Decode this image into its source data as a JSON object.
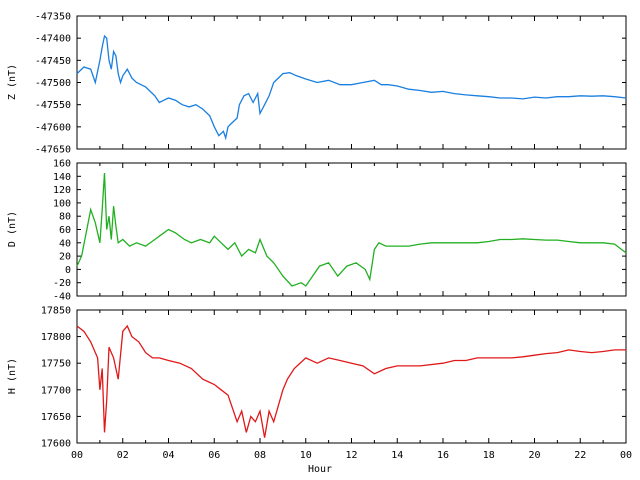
{
  "chart_data": [
    {
      "type": "line",
      "ylabel": "Z (nT)",
      "ylim": [
        -47650,
        -47350
      ],
      "yticks": [
        -47350,
        -47400,
        -47450,
        -47500,
        -47550,
        -47600,
        -47650
      ],
      "color": "#1a7fe0",
      "series": [
        {
          "x": [
            0,
            0.3,
            0.6,
            0.8,
            1.0,
            1.1,
            1.2,
            1.3,
            1.4,
            1.5,
            1.6,
            1.7,
            1.8,
            1.9,
            2.0,
            2.2,
            2.4,
            2.6,
            2.8,
            3.0,
            3.2,
            3.4,
            3.6,
            3.8,
            4.0,
            4.3,
            4.6,
            4.9,
            5.2,
            5.5,
            5.8,
            6.0,
            6.2,
            6.4,
            6.5,
            6.6,
            6.8,
            7.0,
            7.1,
            7.3,
            7.5,
            7.7,
            7.9,
            8.0,
            8.2,
            8.4,
            8.6,
            8.8,
            9.0,
            9.3,
            9.6,
            10.0,
            10.5,
            11.0,
            11.5,
            12.0,
            12.5,
            13.0,
            13.3,
            13.6,
            14.0,
            14.5,
            15.0,
            15.5,
            16.0,
            16.5,
            17.0,
            17.5,
            18.0,
            18.5,
            19.0,
            19.5,
            20.0,
            20.5,
            21.0,
            21.5,
            22.0,
            22.5,
            23.0,
            23.5,
            24.0
          ],
          "values": [
            -47480,
            -47465,
            -47470,
            -47500,
            -47450,
            -47420,
            -47395,
            -47400,
            -47450,
            -47470,
            -47430,
            -47440,
            -47480,
            -47500,
            -47485,
            -47470,
            -47490,
            -47500,
            -47505,
            -47510,
            -47520,
            -47530,
            -47545,
            -47540,
            -47535,
            -47540,
            -47550,
            -47555,
            -47550,
            -47560,
            -47575,
            -47600,
            -47620,
            -47610,
            -47625,
            -47600,
            -47590,
            -47580,
            -47550,
            -47530,
            -47525,
            -47545,
            -47525,
            -47570,
            -47550,
            -47530,
            -47500,
            -47490,
            -47480,
            -47478,
            -47485,
            -47492,
            -47500,
            -47495,
            -47505,
            -47505,
            -47500,
            -47495,
            -47505,
            -47505,
            -47508,
            -47515,
            -47518,
            -47522,
            -47520,
            -47525,
            -47528,
            -47530,
            -47532,
            -47535,
            -47535,
            -47537,
            -47533,
            -47535,
            -47532,
            -47532,
            -47530,
            -47531,
            -47530,
            -47532,
            -47535
          ]
        }
      ]
    },
    {
      "type": "line",
      "ylabel": "D (nT)",
      "ylim": [
        -40,
        160
      ],
      "yticks": [
        160,
        140,
        120,
        100,
        80,
        60,
        40,
        20,
        0,
        -20,
        -40
      ],
      "color": "#22b022",
      "series": [
        {
          "x": [
            0,
            0.2,
            0.4,
            0.6,
            0.8,
            1.0,
            1.1,
            1.2,
            1.3,
            1.4,
            1.5,
            1.6,
            1.7,
            1.8,
            2.0,
            2.3,
            2.6,
            3.0,
            3.4,
            3.8,
            4.0,
            4.3,
            4.7,
            5.0,
            5.4,
            5.8,
            6.0,
            6.3,
            6.6,
            6.9,
            7.2,
            7.5,
            7.8,
            8.0,
            8.3,
            8.6,
            9.0,
            9.4,
            9.8,
            10.0,
            10.3,
            10.6,
            11.0,
            11.4,
            11.8,
            12.2,
            12.6,
            12.8,
            13.0,
            13.2,
            13.5,
            14.0,
            14.5,
            15.0,
            15.5,
            16.0,
            16.5,
            17.0,
            17.5,
            18.0,
            18.5,
            19.0,
            19.5,
            20.0,
            20.5,
            21.0,
            21.5,
            22.0,
            22.5,
            23.0,
            23.5,
            23.8,
            24.0
          ],
          "values": [
            5,
            20,
            55,
            90,
            70,
            40,
            90,
            145,
            60,
            80,
            45,
            95,
            65,
            40,
            45,
            35,
            40,
            35,
            45,
            55,
            60,
            55,
            45,
            40,
            45,
            40,
            50,
            40,
            30,
            40,
            20,
            30,
            25,
            45,
            20,
            10,
            -10,
            -25,
            -20,
            -25,
            -10,
            5,
            10,
            -10,
            5,
            10,
            0,
            -15,
            30,
            40,
            35,
            35,
            35,
            38,
            40,
            40,
            40,
            40,
            40,
            42,
            45,
            45,
            46,
            45,
            44,
            44,
            42,
            40,
            40,
            40,
            38,
            30,
            25
          ]
        }
      ]
    },
    {
      "type": "line",
      "ylabel": "H (nT)",
      "xlabel": "Hour",
      "ylim": [
        17600,
        17850
      ],
      "yticks": [
        17850,
        17800,
        17750,
        17700,
        17650,
        17600
      ],
      "xticks": [
        "00",
        "02",
        "04",
        "06",
        "08",
        "10",
        "12",
        "14",
        "16",
        "18",
        "20",
        "22",
        "00"
      ],
      "color": "#e01818",
      "series": [
        {
          "x": [
            0,
            0.3,
            0.6,
            0.9,
            1.0,
            1.1,
            1.2,
            1.3,
            1.4,
            1.6,
            1.8,
            2.0,
            2.2,
            2.4,
            2.7,
            3.0,
            3.3,
            3.6,
            4.0,
            4.5,
            5.0,
            5.5,
            6.0,
            6.3,
            6.6,
            7.0,
            7.2,
            7.4,
            7.6,
            7.8,
            8.0,
            8.2,
            8.4,
            8.6,
            8.8,
            9.0,
            9.2,
            9.5,
            10.0,
            10.5,
            11.0,
            11.5,
            12.0,
            12.5,
            13.0,
            13.5,
            14.0,
            15.0,
            16.0,
            16.5,
            17.0,
            17.5,
            18.0,
            18.5,
            19.0,
            19.5,
            20.0,
            20.5,
            21.0,
            21.5,
            22.0,
            22.5,
            23.0,
            23.5,
            24.0
          ],
          "values": [
            17820,
            17810,
            17790,
            17760,
            17700,
            17740,
            17620,
            17680,
            17780,
            17760,
            17720,
            17810,
            17820,
            17800,
            17790,
            17770,
            17760,
            17760,
            17755,
            17750,
            17740,
            17720,
            17710,
            17700,
            17690,
            17640,
            17660,
            17620,
            17650,
            17640,
            17660,
            17610,
            17660,
            17640,
            17670,
            17700,
            17720,
            17740,
            17760,
            17750,
            17760,
            17755,
            17750,
            17745,
            17730,
            17740,
            17745,
            17745,
            17750,
            17755,
            17755,
            17760,
            17760,
            17760,
            17760,
            17762,
            17765,
            17768,
            17770,
            17775,
            17772,
            17770,
            17772,
            17775,
            17775
          ]
        }
      ]
    }
  ]
}
